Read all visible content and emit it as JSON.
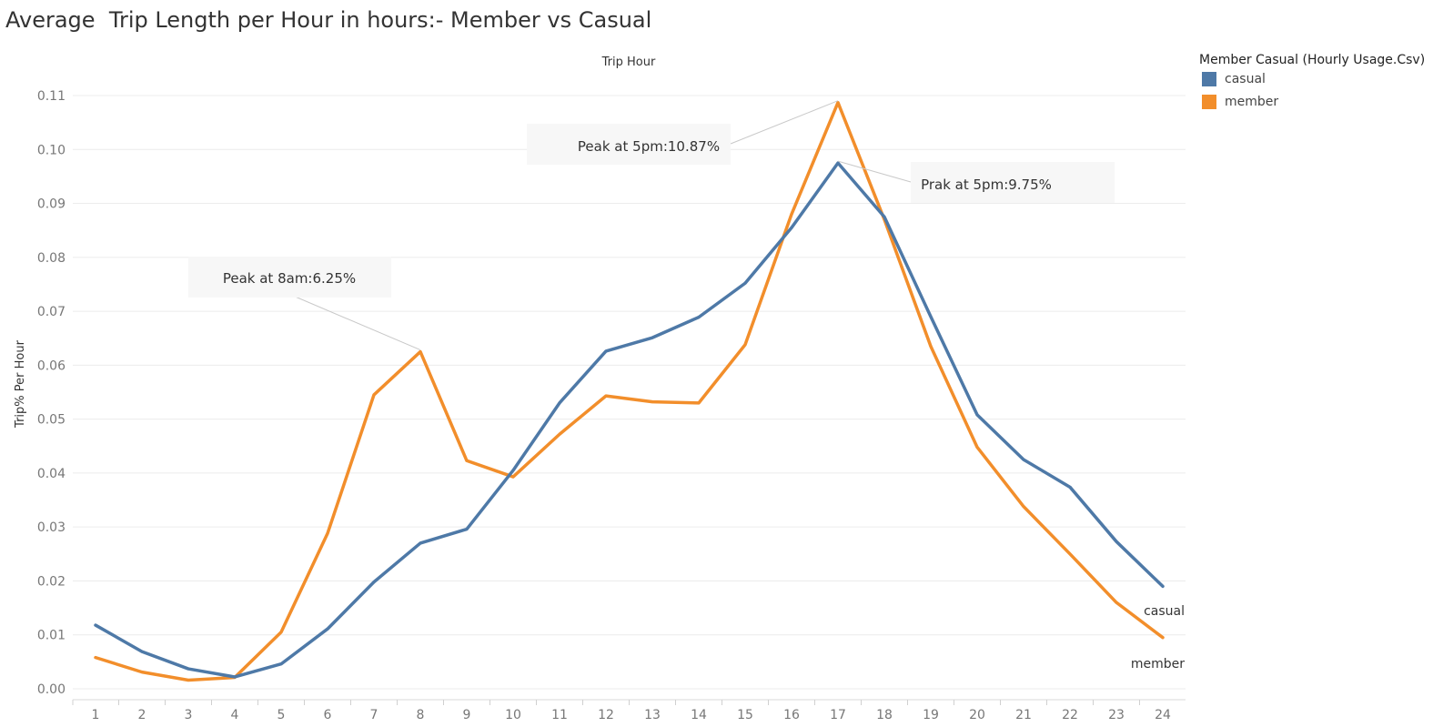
{
  "title": "Average  Trip Length per Hour in hours:- Member vs Casual",
  "legend": {
    "title": "Member Casual (Hourly Usage.Csv)",
    "items": [
      {
        "label": "casual",
        "color": "#4e79a7"
      },
      {
        "label": "member",
        "color": "#f28e2b"
      }
    ]
  },
  "chart_data": {
    "type": "line",
    "xlabel": "Trip Hour",
    "ylabel": "Trip% Per Hour",
    "x": [
      1,
      2,
      3,
      4,
      5,
      6,
      7,
      8,
      9,
      10,
      11,
      12,
      13,
      14,
      15,
      16,
      17,
      18,
      19,
      20,
      21,
      22,
      23,
      24
    ],
    "yticks": [
      "0.00",
      "0.01",
      "0.02",
      "0.03",
      "0.04",
      "0.05",
      "0.06",
      "0.07",
      "0.08",
      "0.09",
      "0.10",
      "0.11"
    ],
    "ylim": [
      0,
      0.11
    ],
    "grid": "horizontal",
    "legend_position": "right",
    "series": [
      {
        "name": "casual",
        "color": "#4e79a7",
        "values": [
          0.0118,
          0.0069,
          0.0037,
          0.0022,
          0.0046,
          0.0111,
          0.0198,
          0.027,
          0.0296,
          0.0405,
          0.053,
          0.0626,
          0.0651,
          0.0689,
          0.0752,
          0.0855,
          0.0975,
          0.0875,
          0.069,
          0.0508,
          0.0425,
          0.0374,
          0.0273,
          0.019
        ]
      },
      {
        "name": "member",
        "color": "#f28e2b",
        "values": [
          0.0058,
          0.0031,
          0.0016,
          0.0021,
          0.0105,
          0.0288,
          0.0545,
          0.0625,
          0.0423,
          0.0393,
          0.0472,
          0.0543,
          0.0532,
          0.053,
          0.0638,
          0.088,
          0.1087,
          0.087,
          0.0635,
          0.0448,
          0.0338,
          0.025,
          0.016,
          0.0095
        ]
      }
    ],
    "annotations": [
      {
        "text": "Peak at 8am:6.25%",
        "series": "member",
        "x": 8
      },
      {
        "text": "Peak at 5pm:10.87%",
        "series": "member",
        "x": 17
      },
      {
        "text": "Prak at 5pm:9.75%",
        "series": "casual",
        "x": 17
      }
    ],
    "end_labels": [
      {
        "text": "casual",
        "series": "casual"
      },
      {
        "text": "member",
        "series": "member"
      }
    ]
  }
}
